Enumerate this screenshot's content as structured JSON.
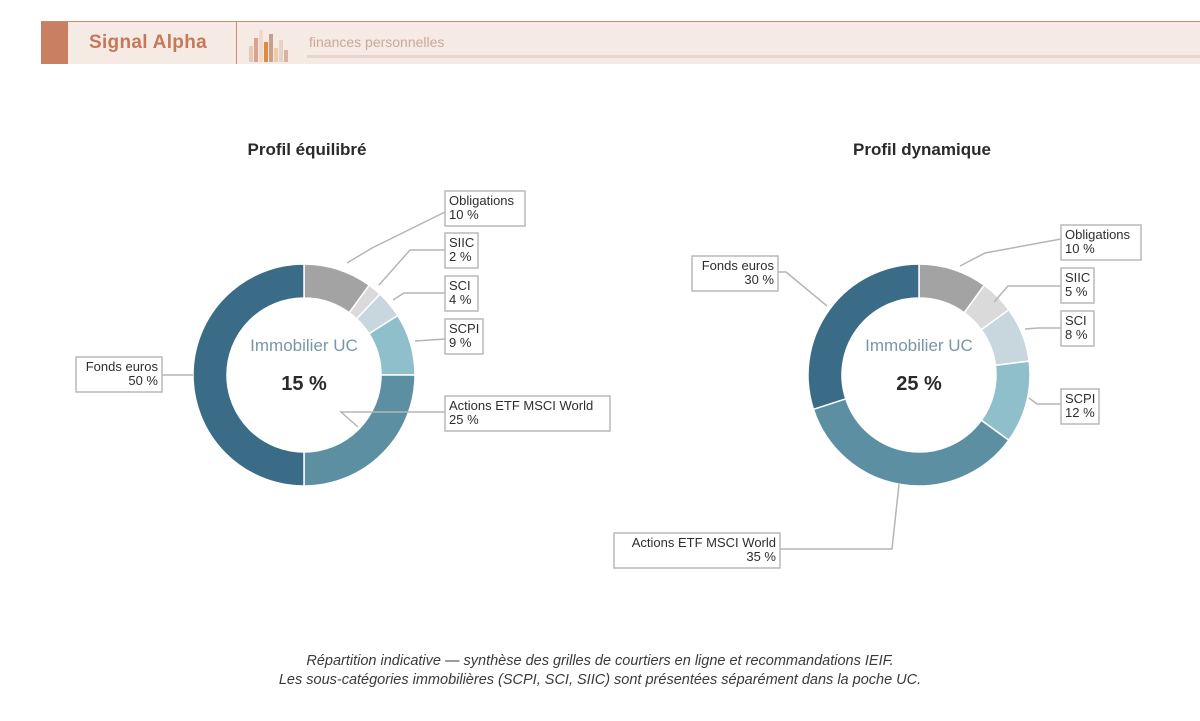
{
  "header": {
    "brand": "Signal Alpha",
    "tagline": "finances personnelles",
    "accent": "#c87f62"
  },
  "chart_data": [
    {
      "type": "pie",
      "title": "Profil équilibré",
      "center_label": "Immobilier UC",
      "center_value": "15 %",
      "slices": [
        {
          "label": "Obligations",
          "value": 10,
          "display": "10 %",
          "color": "#a3a3a3"
        },
        {
          "label": "SIIC",
          "value": 2,
          "display": "2 %",
          "color": "#dadada"
        },
        {
          "label": "SCI",
          "value": 4,
          "display": "4 %",
          "color": "#c8d6dd"
        },
        {
          "label": "SCPI",
          "value": 9,
          "display": "9 %",
          "color": "#8fbfca"
        },
        {
          "label": "Actions ETF MSCI World",
          "value": 25,
          "display": "25 %",
          "color": "#5b8fa1"
        },
        {
          "label": "Fonds euros",
          "value": 50,
          "display": "50 %",
          "color": "#3a6b87"
        }
      ]
    },
    {
      "type": "pie",
      "title": "Profil dynamique",
      "center_label": "Immobilier UC",
      "center_value": "25 %",
      "slices": [
        {
          "label": "Obligations",
          "value": 10,
          "display": "10 %",
          "color": "#a3a3a3"
        },
        {
          "label": "SIIC",
          "value": 5,
          "display": "5 %",
          "color": "#dadada"
        },
        {
          "label": "SCI",
          "value": 8,
          "display": "8 %",
          "color": "#c8d6dd"
        },
        {
          "label": "SCPI",
          "value": 12,
          "display": "12 %",
          "color": "#8fbfca"
        },
        {
          "label": "Actions ETF MSCI World",
          "value": 35,
          "display": "35 %",
          "color": "#5b8fa1"
        },
        {
          "label": "Fonds euros",
          "value": 30,
          "display": "30 %",
          "color": "#3a6b87"
        }
      ]
    }
  ],
  "caption": {
    "line1": "Répartition indicative — synthèse des grilles de courtiers en ligne et recommandations IEIF.",
    "line2": "Les sous-catégories immobilières (SCPI, SCI, SIIC) sont présentées séparément dans la poche UC."
  }
}
